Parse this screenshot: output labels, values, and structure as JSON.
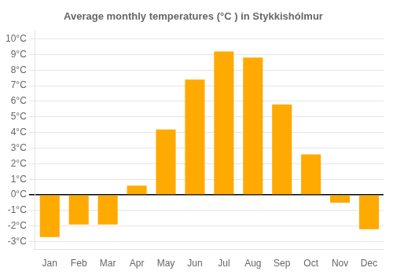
{
  "chart_data": {
    "type": "bar",
    "title": "Average monthly temperatures (°C ) in Stykkishólmur",
    "categories": [
      "Jan",
      "Feb",
      "Mar",
      "Apr",
      "May",
      "Jun",
      "Jul",
      "Aug",
      "Sep",
      "Oct",
      "Nov",
      "Dec"
    ],
    "values": [
      -2.7,
      -1.9,
      -1.9,
      0.6,
      4.2,
      7.4,
      9.2,
      8.8,
      5.8,
      2.6,
      -0.5,
      -2.2
    ],
    "color": "#FFAA00",
    "ylim": [
      -3.5,
      10.5
    ],
    "yticks": [
      {
        "value": -3,
        "label": "-3°C"
      },
      {
        "value": -2,
        "label": "-2°C"
      },
      {
        "value": -1,
        "label": "-1°C"
      },
      {
        "value": 0,
        "label": "0°C"
      },
      {
        "value": 1,
        "label": "1°C"
      },
      {
        "value": 2,
        "label": "2°C"
      },
      {
        "value": 3,
        "label": "3°C"
      },
      {
        "value": 4,
        "label": "4°C"
      },
      {
        "value": 5,
        "label": "5°C"
      },
      {
        "value": 6,
        "label": "6°C"
      },
      {
        "value": 7,
        "label": "7°C"
      },
      {
        "value": 8,
        "label": "8°C"
      },
      {
        "value": 9,
        "label": "9°C"
      },
      {
        "value": 10,
        "label": "10°C"
      }
    ],
    "grid": true
  }
}
